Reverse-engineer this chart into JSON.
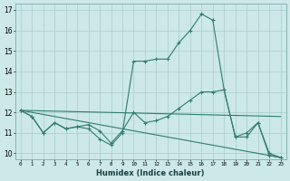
{
  "xlabel": "Humidex (Indice chaleur)",
  "bg_color": "#cce8e8",
  "line_color": "#2d7d6e",
  "grid_color": "#aacccc",
  "ylim": [
    9.7,
    17.3
  ],
  "xlim": [
    -0.5,
    23.5
  ],
  "yticks": [
    10,
    11,
    12,
    13,
    14,
    15,
    16,
    17
  ],
  "xticks": [
    0,
    1,
    2,
    3,
    4,
    5,
    6,
    7,
    8,
    9,
    10,
    11,
    12,
    13,
    14,
    15,
    16,
    17,
    18,
    19,
    20,
    21,
    22,
    23
  ],
  "lines": [
    {
      "x": [
        0,
        1,
        2,
        3,
        4,
        5,
        6,
        7,
        8,
        9,
        10,
        11,
        12,
        13,
        14,
        15,
        16,
        17,
        18,
        19,
        20,
        21,
        22,
        23
      ],
      "y": [
        12.1,
        11.8,
        11.0,
        11.5,
        11.2,
        11.3,
        11.2,
        10.7,
        10.4,
        11.0,
        14.5,
        14.5,
        14.6,
        14.6,
        15.4,
        16.0,
        16.8,
        16.5,
        13.1,
        10.8,
        10.8,
        11.5,
        9.9,
        9.8
      ]
    },
    {
      "x": [
        0,
        1,
        2,
        3,
        4,
        5,
        6,
        7,
        8,
        9,
        10,
        11,
        12,
        13,
        14,
        15,
        16,
        17,
        18,
        19,
        20,
        21,
        22,
        23
      ],
      "y": [
        12.1,
        11.8,
        11.0,
        11.5,
        11.2,
        11.3,
        11.4,
        11.1,
        10.5,
        11.1,
        12.0,
        11.5,
        11.6,
        11.8,
        12.2,
        12.6,
        13.0,
        13.0,
        13.1,
        10.8,
        11.0,
        11.5,
        10.0,
        9.8
      ]
    },
    {
      "x": [
        0,
        23
      ],
      "y": [
        12.1,
        9.8
      ]
    },
    {
      "x": [
        0,
        23
      ],
      "y": [
        12.1,
        11.8
      ]
    }
  ]
}
